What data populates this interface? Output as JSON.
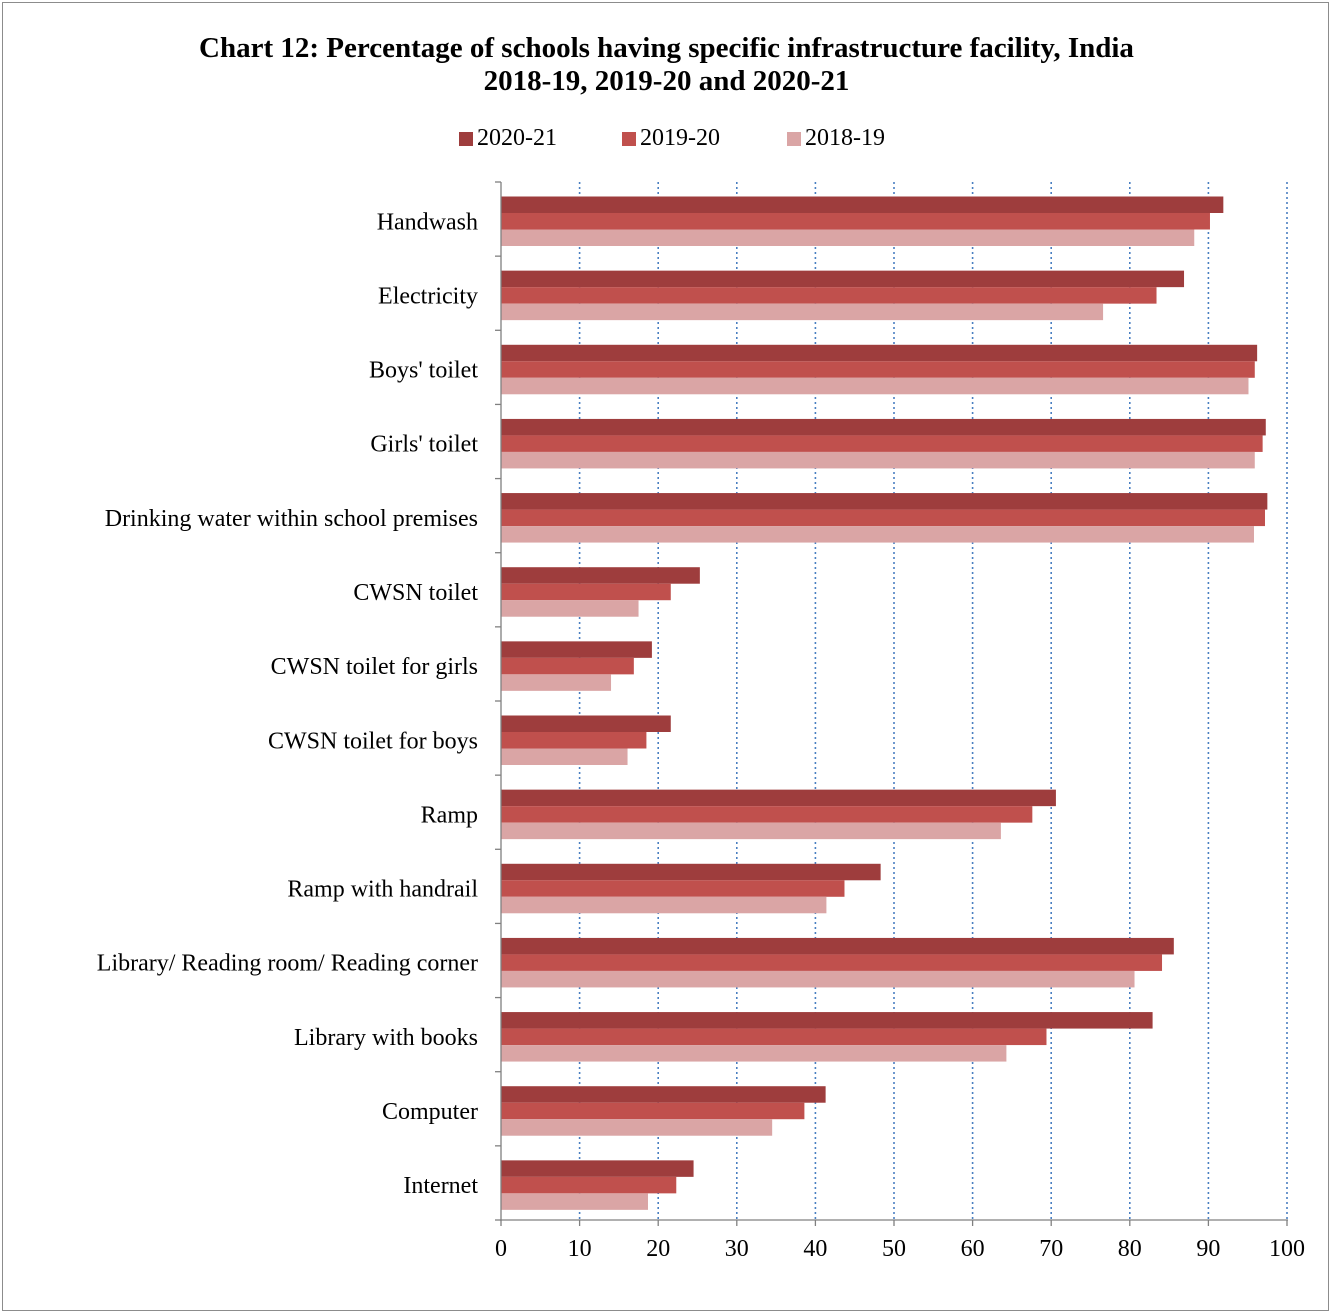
{
  "title_line1": "Chart 12: Percentage of schools having specific infrastructure facility, India",
  "title_line2": "2018-19, 2019-20 and 2020-21",
  "chart_data": {
    "type": "bar",
    "orientation": "horizontal",
    "title": "Chart 12: Percentage of schools having specific infrastructure facility, India 2018-19, 2019-20 and 2020-21",
    "categories": [
      "Handwash",
      "Electricity",
      "Boys' toilet",
      "Girls' toilet",
      "Drinking water within school premises",
      "CWSN toilet",
      "CWSN toilet for girls",
      "CWSN toilet for boys",
      "Ramp",
      "Ramp with handrail",
      "Library/ Reading room/ Reading corner",
      "Library with books",
      "Computer",
      "Internet"
    ],
    "series": [
      {
        "name": "2020-21",
        "color": "#9e3d3d",
        "values": [
          91.9,
          86.9,
          96.2,
          97.3,
          97.5,
          25.3,
          19.2,
          21.6,
          70.6,
          48.3,
          85.6,
          82.9,
          41.3,
          24.5
        ]
      },
      {
        "name": "2019-20",
        "color": "#c0504d",
        "values": [
          90.2,
          83.4,
          95.9,
          96.9,
          97.2,
          21.6,
          16.9,
          18.5,
          67.6,
          43.7,
          84.1,
          69.4,
          38.6,
          22.3
        ]
      },
      {
        "name": "2018-19",
        "color": "#daa5a5",
        "values": [
          88.2,
          76.6,
          95.1,
          95.9,
          95.8,
          17.5,
          14.0,
          16.1,
          63.6,
          41.4,
          80.6,
          64.3,
          34.5,
          18.7
        ]
      }
    ],
    "x_ticks": [
      "0",
      "10",
      "20",
      "30",
      "40",
      "50",
      "60",
      "70",
      "80",
      "90",
      "100"
    ],
    "xlim": [
      0,
      100
    ],
    "grid": "vertical dotted",
    "legend_position": "top"
  }
}
